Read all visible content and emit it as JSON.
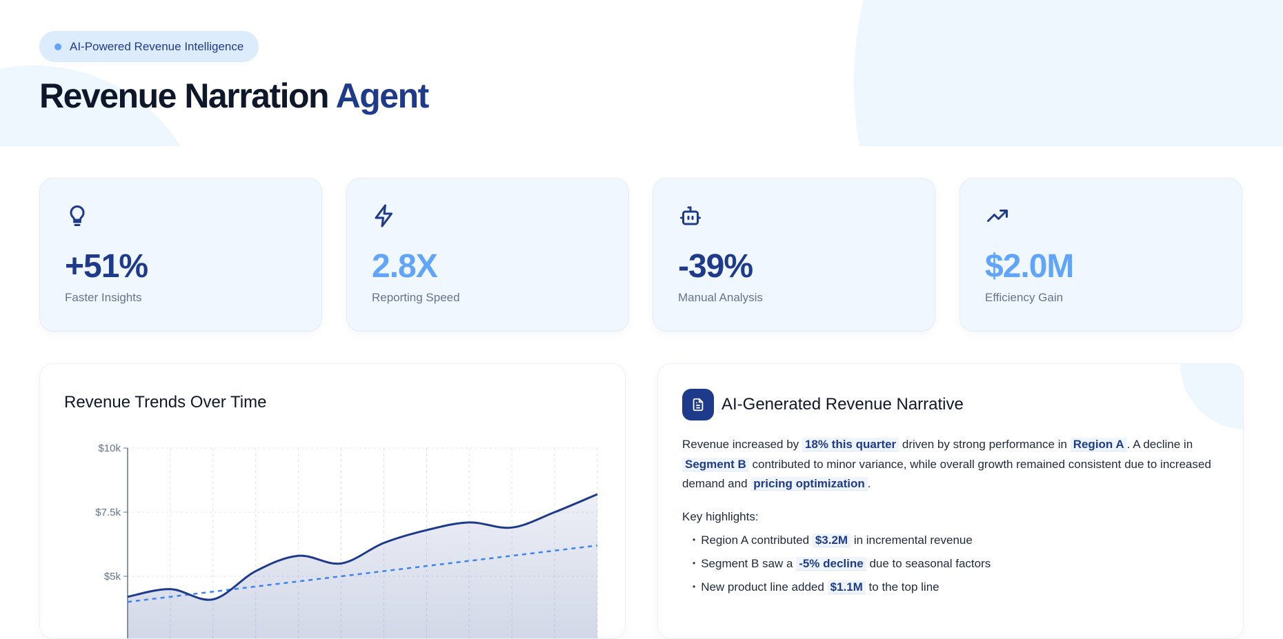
{
  "header": {
    "badge": "AI-Powered Revenue Intelligence",
    "title_main": "Revenue Narration",
    "title_accent": "Agent"
  },
  "stats": [
    {
      "icon": "lightbulb-icon",
      "value": "+51%",
      "label": "Faster Insights",
      "color": "#1e3a8a"
    },
    {
      "icon": "lightning-icon",
      "value": "2.8X",
      "label": "Reporting Speed",
      "color": "#60a5fa"
    },
    {
      "icon": "robot-icon",
      "value": "-39%",
      "label": "Manual Analysis",
      "color": "#1e3a8a"
    },
    {
      "icon": "trending-up-icon",
      "value": "$2.0M",
      "label": "Efficiency Gain",
      "color": "#60a5fa"
    }
  ],
  "chart_panel": {
    "title": "Revenue Trends Over Time"
  },
  "chart_data": {
    "type": "line",
    "y_ticks": [
      "$10k",
      "$7.5k",
      "$5k"
    ],
    "ylim": [
      0,
      10000
    ],
    "grid": true,
    "series": [
      {
        "style": "solid-area",
        "color": "#1e3a8a",
        "values": [
          4200,
          4500,
          4100,
          5200,
          5800,
          5500,
          6300,
          6800,
          7100,
          6900,
          7500,
          8200
        ]
      },
      {
        "style": "dashed-trend",
        "color": "#3b82f6",
        "values": [
          4000,
          4200,
          4400,
          4600,
          4800,
          5000,
          5200,
          5400,
          5600,
          5800,
          6000,
          6200
        ]
      }
    ]
  },
  "narrative": {
    "title": "AI-Generated Revenue Narrative",
    "p": {
      "t1": "Revenue increased by",
      "h1": "18% this quarter",
      "t2": "driven by strong performance in",
      "h2": "Region A",
      "t3": ". A decline in",
      "h3": "Segment B",
      "t4": "contributed to minor variance, while overall growth remained consistent due to increased demand and",
      "h4": "pricing optimization",
      "t5": "."
    },
    "key_label": "Key highlights:",
    "bullets": [
      {
        "a": "Region A contributed",
        "h": "$3.2M",
        "b": "in incremental revenue"
      },
      {
        "a": "Segment B saw a",
        "h": "-5% decline",
        "b": "due to seasonal factors"
      },
      {
        "a": "New product line added",
        "h": "$1.1M",
        "b": "to the top line"
      }
    ]
  }
}
